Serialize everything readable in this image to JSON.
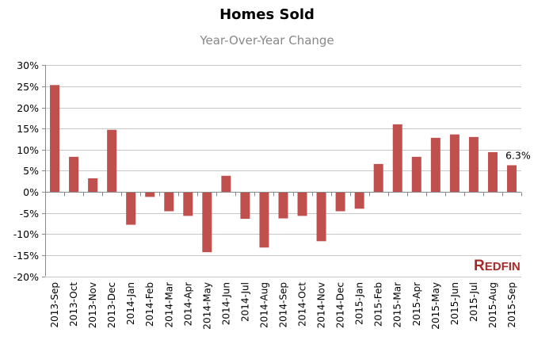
{
  "chart_data": {
    "type": "bar",
    "title": "Homes Sold",
    "subtitle": "Year-Over-Year Change",
    "categories": [
      "2013-Sep",
      "2013-Oct",
      "2013-Nov",
      "2013-Dec",
      "2014-Jan",
      "2014-Feb",
      "2014-Mar",
      "2014-Apr",
      "2014-May",
      "2014-Jun",
      "2014-Jul",
      "2014-Aug",
      "2014-Sep",
      "2014-Oct",
      "2014-Nov",
      "2014-Dec",
      "2015-Jan",
      "2015-Feb",
      "2015-Mar",
      "2015-Apr",
      "2015-May",
      "2015-Jun",
      "2015-Jul",
      "2015-Aug",
      "2015-Sep"
    ],
    "values": [
      25.3,
      8.3,
      3.2,
      14.7,
      -7.8,
      -1.2,
      -4.6,
      -5.7,
      -14.3,
      3.8,
      -6.4,
      -13.2,
      -6.3,
      -5.7,
      -11.7,
      -4.6,
      -4.0,
      6.6,
      16.0,
      8.3,
      12.8,
      13.6,
      13.0,
      9.4,
      6.3
    ],
    "ylim": [
      -20,
      30
    ],
    "yticks": [
      "30%",
      "25%",
      "20%",
      "15%",
      "10%",
      "5%",
      "0%",
      "-5%",
      "-10%",
      "-15%",
      "-20%"
    ],
    "ytick_values": [
      30,
      25,
      20,
      15,
      10,
      5,
      0,
      -5,
      -10,
      -15,
      -20
    ],
    "data_label": "6.3%",
    "grid": true,
    "bar_color": "#c0504d",
    "grid_color": "#c8c8c8"
  },
  "logo": "REDFIN"
}
